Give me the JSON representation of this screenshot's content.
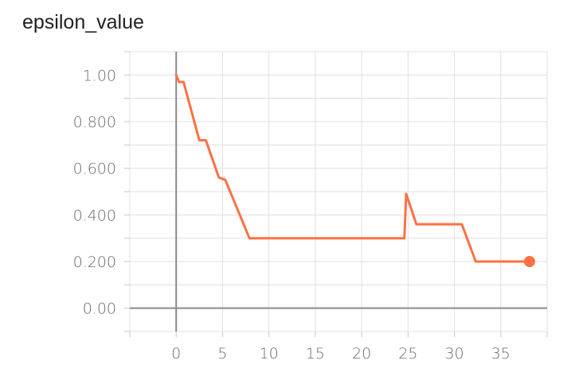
{
  "chart_data": {
    "type": "line",
    "title": "epsilon_value",
    "xlabel": "",
    "ylabel": "",
    "xlim": [
      -5,
      40
    ],
    "ylim": [
      -0.1,
      1.1
    ],
    "x_ticks": [
      0,
      5,
      10,
      15,
      20,
      25,
      30,
      35
    ],
    "x_tick_labels": [
      "0",
      "5",
      "10",
      "15",
      "20",
      "25",
      "30",
      "35"
    ],
    "y_ticks": [
      0,
      0.2,
      0.4,
      0.6,
      0.8,
      1.0
    ],
    "y_tick_labels": [
      "0.00",
      "0.200",
      "0.400",
      "0.600",
      "0.800",
      "1.00"
    ],
    "grid": true,
    "series": [
      {
        "color": "#ff7043",
        "x": [
          0,
          0.3,
          0.8,
          1.2,
          2.5,
          3.2,
          4.6,
          5.3,
          7.9,
          24.6,
          24.8,
          25.9,
          30.8,
          32.3,
          38.1
        ],
        "y": [
          1.0,
          0.97,
          0.97,
          0.91,
          0.72,
          0.72,
          0.56,
          0.55,
          0.3,
          0.3,
          0.49,
          0.36,
          0.36,
          0.2,
          0.2
        ]
      }
    ]
  }
}
